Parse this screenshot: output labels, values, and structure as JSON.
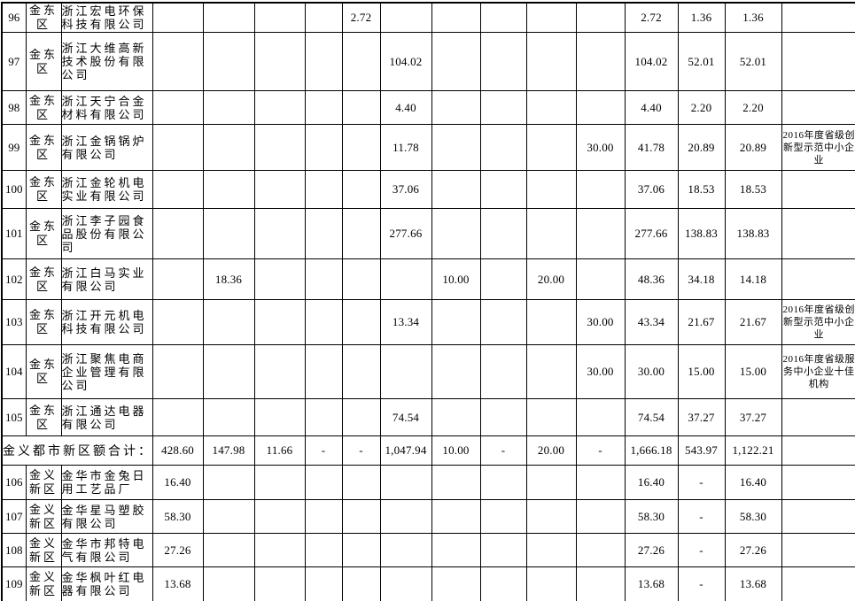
{
  "colors": {
    "border": "#000000",
    "text": "#000000",
    "background": "#ffffff"
  },
  "table": {
    "rows": [
      {
        "type": "data",
        "num": "96",
        "district": "金东区",
        "company": "浙江宏电环保科技有限公司",
        "values": [
          "",
          "",
          "",
          "",
          "2.72",
          "",
          "",
          "",
          "",
          "",
          "2.72",
          "1.36",
          "1.36"
        ],
        "note": ""
      },
      {
        "type": "data",
        "num": "97",
        "district": "金东区",
        "company": "浙江大维高新技术股份有限公司",
        "values": [
          "",
          "",
          "",
          "",
          "",
          "104.02",
          "",
          "",
          "",
          "",
          "104.02",
          "52.01",
          "52.01"
        ],
        "note": ""
      },
      {
        "type": "data",
        "num": "98",
        "district": "金东区",
        "company": "浙江天宁合金材料有限公司",
        "values": [
          "",
          "",
          "",
          "",
          "",
          "4.40",
          "",
          "",
          "",
          "",
          "4.40",
          "2.20",
          "2.20"
        ],
        "note": ""
      },
      {
        "type": "data",
        "num": "99",
        "district": "金东区",
        "company": "浙江金锅锅炉有限公司",
        "values": [
          "",
          "",
          "",
          "",
          "",
          "11.78",
          "",
          "",
          "",
          "30.00",
          "41.78",
          "20.89",
          "20.89"
        ],
        "note": "2016年度省级创新型示范中小企业"
      },
      {
        "type": "data",
        "num": "100",
        "district": "金东区",
        "company": "浙江金轮机电实业有限公司",
        "values": [
          "",
          "",
          "",
          "",
          "",
          "37.06",
          "",
          "",
          "",
          "",
          "37.06",
          "18.53",
          "18.53"
        ],
        "note": ""
      },
      {
        "type": "data",
        "num": "101",
        "district": "金东区",
        "company": "浙江李子园食品股份有限公司",
        "values": [
          "",
          "",
          "",
          "",
          "",
          "277.66",
          "",
          "",
          "",
          "",
          "277.66",
          "138.83",
          "138.83"
        ],
        "note": ""
      },
      {
        "type": "data",
        "num": "102",
        "district": "金东区",
        "company": "浙江白马实业有限公司",
        "values": [
          "",
          "18.36",
          "",
          "",
          "",
          "",
          "10.00",
          "",
          "20.00",
          "",
          "48.36",
          "34.18",
          "14.18"
        ],
        "note": ""
      },
      {
        "type": "data",
        "num": "103",
        "district": "金东区",
        "company": "浙江开元机电科技有限公司",
        "values": [
          "",
          "",
          "",
          "",
          "",
          "13.34",
          "",
          "",
          "",
          "30.00",
          "43.34",
          "21.67",
          "21.67"
        ],
        "note": "2016年度省级创新型示范中小企业"
      },
      {
        "type": "data",
        "num": "104",
        "district": "金东区",
        "company": "浙江聚焦电商企业管理有限公司",
        "values": [
          "",
          "",
          "",
          "",
          "",
          "",
          "",
          "",
          "",
          "30.00",
          "30.00",
          "15.00",
          "15.00"
        ],
        "note": "2016年度省级服务中小企业十佳机构"
      },
      {
        "type": "data",
        "num": "105",
        "district": "金东区",
        "company": "浙江通达电器有限公司",
        "values": [
          "",
          "",
          "",
          "",
          "",
          "74.54",
          "",
          "",
          "",
          "",
          "74.54",
          "37.27",
          "37.27"
        ],
        "note": ""
      },
      {
        "type": "subtotal",
        "label": "金义都市新区额合计：",
        "values": [
          "428.60",
          "147.98",
          "11.66",
          "-",
          "-",
          "1,047.94",
          "10.00",
          "-",
          "20.00",
          "-",
          "1,666.18",
          "543.97",
          "1,122.21"
        ],
        "note": ""
      },
      {
        "type": "data",
        "num": "106",
        "district": "金义新区",
        "company": "金华市金兔日用工艺品厂",
        "values": [
          "16.40",
          "",
          "",
          "",
          "",
          "",
          "",
          "",
          "",
          "",
          "16.40",
          "-",
          "16.40"
        ],
        "note": ""
      },
      {
        "type": "data",
        "num": "107",
        "district": "金义新区",
        "company": "金华星马塑胶有限公司",
        "values": [
          "58.30",
          "",
          "",
          "",
          "",
          "",
          "",
          "",
          "",
          "",
          "58.30",
          "-",
          "58.30"
        ],
        "note": ""
      },
      {
        "type": "data",
        "num": "108",
        "district": "金义新区",
        "company": "金华市邦特电气有限公司",
        "values": [
          "27.26",
          "",
          "",
          "",
          "",
          "",
          "",
          "",
          "",
          "",
          "27.26",
          "-",
          "27.26"
        ],
        "note": ""
      },
      {
        "type": "data",
        "num": "109",
        "district": "金义新区",
        "company": "金华枫叶红电器有限公司",
        "values": [
          "13.68",
          "",
          "",
          "",
          "",
          "",
          "",
          "",
          "",
          "",
          "13.68",
          "-",
          "13.68"
        ],
        "note": ""
      }
    ]
  }
}
